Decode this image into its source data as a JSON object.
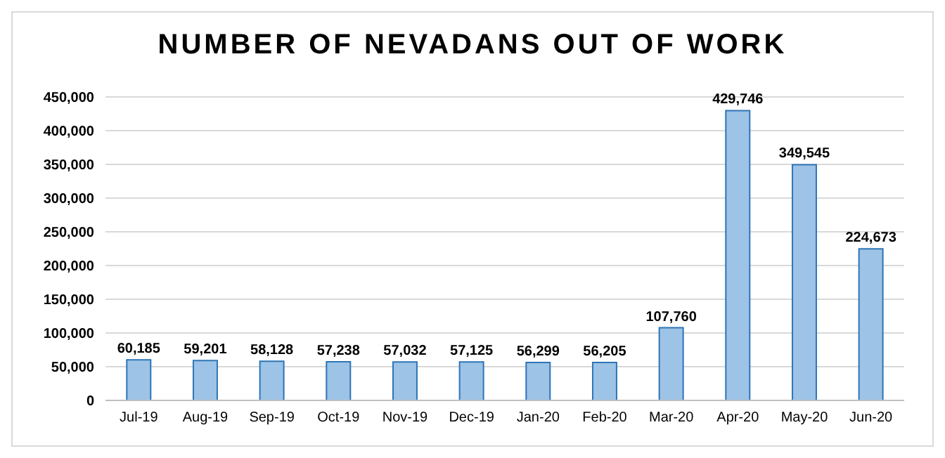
{
  "chart_data": {
    "type": "bar",
    "title": "NUMBER OF NEVADANS OUT OF WORK",
    "categories": [
      "Jul-19",
      "Aug-19",
      "Sep-19",
      "Oct-19",
      "Nov-19",
      "Dec-19",
      "Jan-20",
      "Feb-20",
      "Mar-20",
      "Apr-20",
      "May-20",
      "Jun-20"
    ],
    "values": [
      60185,
      59201,
      58128,
      57238,
      57032,
      57125,
      56299,
      56205,
      107760,
      429746,
      349545,
      224673
    ],
    "color": "#9dc3e6",
    "value_labels": [
      "60,185",
      "59,201",
      "58,128",
      "57,238",
      "57,032",
      "57,125",
      "56,299",
      "56,205",
      "107,760",
      "429,746",
      "349,545",
      "224,673"
    ],
    "ylim": [
      0,
      450000
    ],
    "yticks": [
      0,
      {
        "value": 50000,
        "label": "50,000"
      },
      {
        "value": 100000,
        "label": "100,000"
      },
      {
        "value": 150000,
        "label": "150,000"
      },
      {
        "value": 200000,
        "label": "200,000"
      },
      {
        "value": 250000,
        "label": "250,000"
      },
      {
        "value": 300000,
        "label": "300,000"
      },
      {
        "value": 350000,
        "label": "350,000"
      },
      {
        "value": 400000,
        "label": "400,000"
      },
      {
        "value": 450000,
        "label": "450,000"
      }
    ],
    "grid": "y"
  }
}
